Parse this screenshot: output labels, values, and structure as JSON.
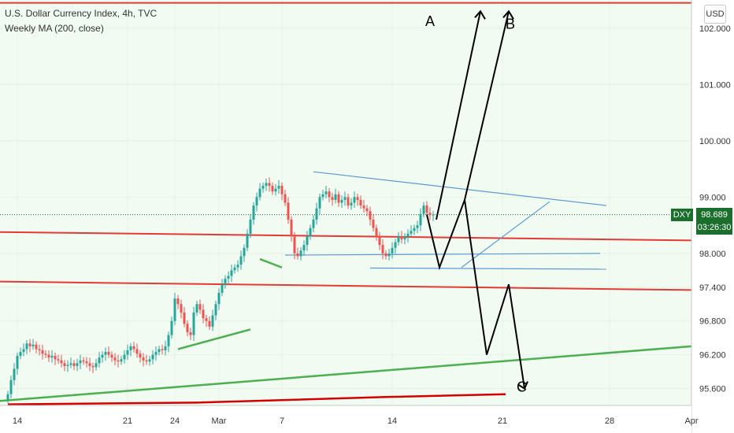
{
  "legend": {
    "title": "U.S. Dollar Currency Index, 4h, TVC",
    "indicator": "Weekly MA (200, close)"
  },
  "currency_button": "USD",
  "symbol_tag": "DXY",
  "last_price": "98.689",
  "countdown": "03:26:30",
  "colors": {
    "up_candle": "#26a69a",
    "down_candle": "#ef5350",
    "level_line": "#e53935",
    "trend_line": "#4caf50",
    "channel_line": "#5b9bd5",
    "ma_line": "#d50000",
    "projection": "#000000",
    "price_tag": "#1b6e2b"
  },
  "chart_data": {
    "type": "candlestick",
    "title": "U.S. Dollar Currency Index, 4h, TVC",
    "ylim": [
      95.3,
      102.5
    ],
    "y_ticks": [
      "102.000",
      "101.000",
      "100.000",
      "99.000",
      "98.000",
      "97.400",
      "96.800",
      "96.200",
      "95.600"
    ],
    "y_tick_values": [
      102.0,
      101.0,
      100.0,
      99.0,
      98.0,
      97.4,
      96.8,
      96.2,
      95.6
    ],
    "x_ticks": [
      "14",
      "21",
      "24",
      "Mar",
      "7",
      "14",
      "21",
      "28",
      "Apr"
    ],
    "x_tick_index": [
      3,
      38,
      53,
      67,
      87,
      122,
      157,
      191,
      217
    ],
    "bar_count": 232,
    "closes": [
      95.5,
      95.75,
      95.95,
      96.18,
      96.25,
      96.3,
      96.4,
      96.35,
      96.38,
      96.3,
      96.28,
      96.22,
      96.2,
      96.15,
      96.18,
      96.12,
      96.1,
      96.05,
      96.0,
      96.02,
      96.05,
      96.0,
      96.05,
      96.1,
      96.08,
      96.05,
      96.0,
      95.98,
      96.05,
      96.15,
      96.2,
      96.25,
      96.2,
      96.15,
      96.1,
      96.08,
      96.12,
      96.2,
      96.28,
      96.35,
      96.3,
      96.22,
      96.15,
      96.1,
      96.08,
      96.12,
      96.2,
      96.25,
      96.3,
      96.28,
      96.35,
      96.55,
      96.8,
      97.2,
      97.1,
      96.95,
      96.75,
      96.6,
      96.55,
      96.95,
      97.1,
      97.0,
      96.85,
      96.8,
      96.7,
      96.9,
      97.1,
      97.3,
      97.45,
      97.55,
      97.6,
      97.7,
      97.75,
      97.8,
      97.95,
      98.1,
      98.35,
      98.6,
      98.85,
      99.0,
      99.15,
      99.2,
      99.25,
      99.2,
      99.1,
      99.15,
      99.2,
      99.05,
      98.9,
      98.6,
      98.3,
      98.0,
      97.95,
      98.05,
      98.15,
      98.3,
      98.45,
      98.6,
      98.8,
      99.0,
      99.05,
      99.1,
      99.0,
      98.95,
      99.05,
      98.9,
      98.95,
      99.0,
      98.85,
      98.9,
      99.0,
      98.95,
      98.85,
      98.8,
      98.75,
      98.6,
      98.45,
      98.3,
      98.15,
      98.0,
      97.95,
      98.0,
      98.1,
      98.2,
      98.3,
      98.25,
      98.3,
      98.35,
      98.4,
      98.45,
      98.5,
      98.7,
      98.85,
      98.72,
      98.68,
      98.689
    ],
    "projection_path": [
      [
        133,
        98.689
      ],
      [
        137,
        97.75
      ],
      [
        145,
        98.95
      ],
      [
        152,
        96.2
      ],
      [
        159,
        97.45
      ],
      [
        164,
        95.6
      ]
    ],
    "projection_up_a": [
      [
        136,
        98.6
      ],
      [
        150,
        102.3
      ]
    ],
    "projection_up_b": [
      [
        145,
        98.95
      ],
      [
        159,
        102.3
      ]
    ],
    "annotations": [
      "A",
      "B",
      "C"
    ]
  }
}
